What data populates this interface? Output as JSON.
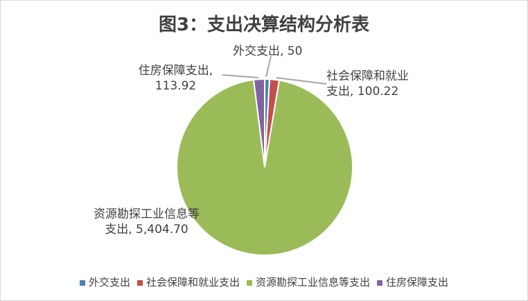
{
  "chart_data": {
    "type": "pie",
    "title": "图3：支出决算结构分析表",
    "categories": [
      "外交支出",
      "社会保障和就业支出",
      "资源勘探工业信息等支出",
      "住房保障支出"
    ],
    "values": [
      50,
      100.22,
      5404.7,
      113.92
    ],
    "data_labels": [
      "外交支出, 50",
      "社会保障和就业支出, 100.22",
      "资源勘探工业信息等支出, 5,404.70",
      "住房保障支出, 113.92"
    ],
    "colors": [
      "#4f81bd",
      "#c0504d",
      "#9bbb59",
      "#8064a2"
    ],
    "start_angle": "12 o'clock",
    "direction": "clockwise",
    "legend_position": "bottom"
  }
}
